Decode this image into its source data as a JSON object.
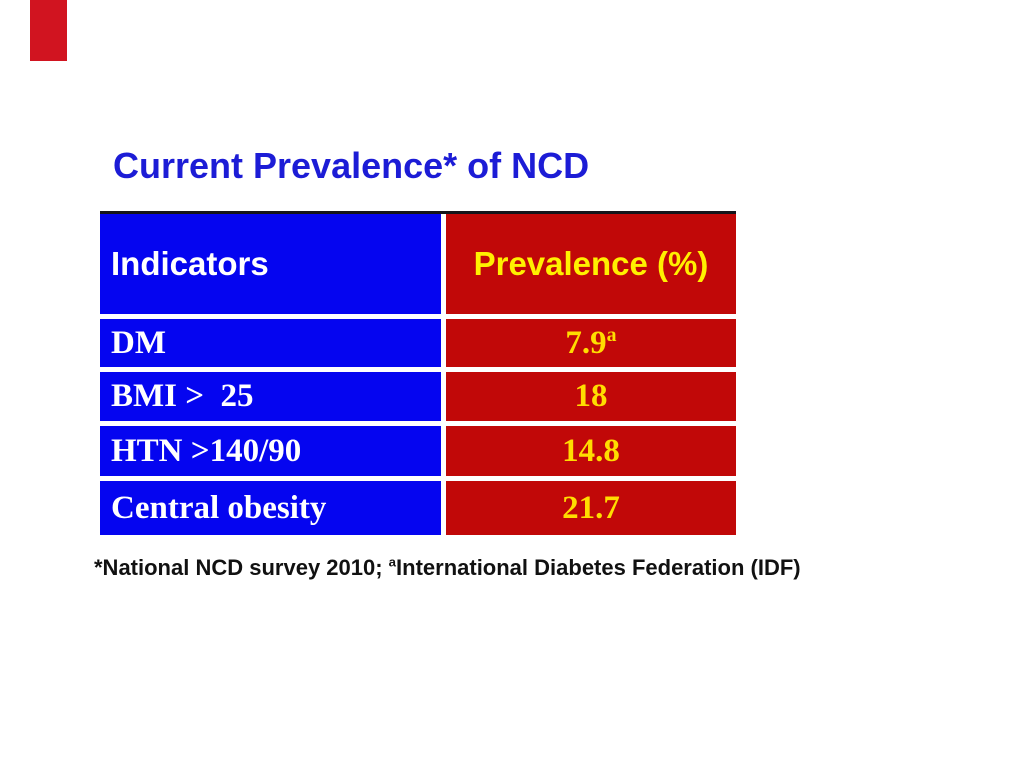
{
  "colors": {
    "ribbon_red": "#d11420",
    "title_blue": "#1c1cd6",
    "cell_blue": "#0505f0",
    "cell_red": "#c10808",
    "header_text_white": "#ffffff",
    "header_text_yellow": "#fff000",
    "value_yellow": "#ffdd00",
    "footnote_black": "#111111",
    "table_border": "#15151b"
  },
  "slide": {
    "title": "Current Prevalence* of NCD",
    "footnote": {
      "part1": "*National NCD survey 2010; ",
      "sup": "a",
      "part2": "International Diabetes Federation (IDF)"
    }
  },
  "table": {
    "headers": [
      "Indicators",
      "Prevalence (%)"
    ],
    "rows": [
      {
        "label": "DM",
        "value": "7.9",
        "value_sup": "a"
      },
      {
        "label": "BMI >  25",
        "value": "18",
        "value_sup": ""
      },
      {
        "label": "HTN >140/90",
        "value": "14.8",
        "value_sup": ""
      },
      {
        "label": "Central obesity",
        "value": "21.7",
        "value_sup": ""
      }
    ]
  },
  "chart_data": {
    "type": "table",
    "title": "Current Prevalence* of NCD",
    "columns": [
      "Indicators",
      "Prevalence (%)"
    ],
    "categories": [
      "DM",
      "BMI > 25",
      "HTN >140/90",
      "Central obesity"
    ],
    "values": [
      7.9,
      18,
      14.8,
      21.7
    ],
    "value_superscripts": [
      "a",
      "",
      "",
      ""
    ],
    "footnote": "*National NCD survey 2010; aInternational Diabetes Federation (IDF)"
  }
}
